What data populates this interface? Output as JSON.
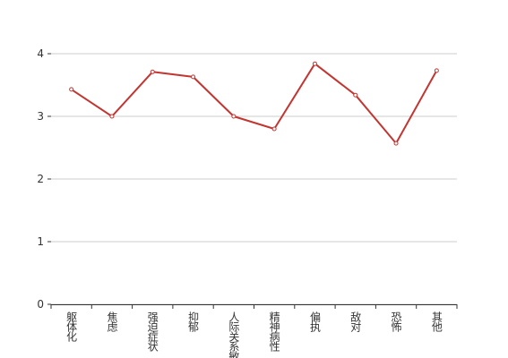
{
  "chart_data": {
    "type": "line",
    "categories": [
      "躯体化",
      "焦虑",
      "强迫症状",
      "抑郁",
      "人际关系敏感",
      "精神病性",
      "偏执",
      "敌对",
      "恐怖",
      "其他"
    ],
    "values": [
      3.43,
      3.0,
      3.71,
      3.63,
      3.0,
      2.8,
      3.84,
      3.34,
      2.57,
      3.73
    ],
    "color": "#c23531",
    "ylim": [
      0,
      4
    ],
    "yticks": [
      0,
      1,
      2,
      3,
      4
    ],
    "grid": true
  }
}
